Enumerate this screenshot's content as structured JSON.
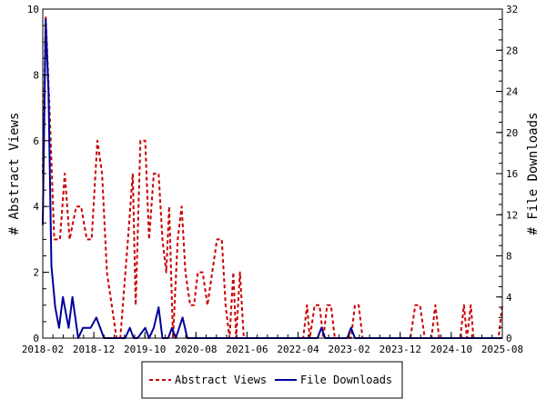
{
  "chart_data": {
    "type": "line",
    "x_axis": {
      "tick_labels": [
        "2018-02",
        "2018-12",
        "2019-10",
        "2020-08",
        "2021-06",
        "2022-04",
        "2023-02",
        "2023-12",
        "2024-10",
        "2025-08"
      ]
    },
    "y_left": {
      "label": "# Abstract Views",
      "range": [
        0,
        10
      ],
      "ticks": [
        0,
        2,
        4,
        6,
        8,
        10
      ]
    },
    "y_right": {
      "label": "# File Downloads",
      "range": [
        0,
        32
      ],
      "ticks": [
        0,
        4,
        8,
        12,
        16,
        20,
        24,
        28,
        32
      ]
    },
    "legend": {
      "position": "bottom"
    },
    "series": [
      {
        "name": "Abstract Views",
        "axis": "left",
        "color": "#cc0000",
        "style": "dashed",
        "points": [
          [
            0.0,
            5
          ],
          [
            0.15,
            9.8
          ],
          [
            0.35,
            7
          ],
          [
            0.6,
            3
          ],
          [
            0.9,
            3
          ],
          [
            1.15,
            5
          ],
          [
            1.4,
            3
          ],
          [
            1.75,
            4
          ],
          [
            2.0,
            4
          ],
          [
            2.3,
            3
          ],
          [
            2.55,
            3
          ],
          [
            2.85,
            6
          ],
          [
            3.1,
            5
          ],
          [
            3.35,
            2
          ],
          [
            3.6,
            1
          ],
          [
            3.85,
            0
          ],
          [
            4.05,
            0
          ],
          [
            4.45,
            3
          ],
          [
            4.7,
            5
          ],
          [
            4.85,
            1
          ],
          [
            5.1,
            6
          ],
          [
            5.35,
            6
          ],
          [
            5.55,
            3
          ],
          [
            5.8,
            5
          ],
          [
            6.05,
            5
          ],
          [
            6.25,
            3
          ],
          [
            6.45,
            2
          ],
          [
            6.6,
            4
          ],
          [
            6.8,
            0
          ],
          [
            7.05,
            3
          ],
          [
            7.25,
            4
          ],
          [
            7.45,
            2
          ],
          [
            7.7,
            1
          ],
          [
            7.9,
            1
          ],
          [
            8.1,
            2
          ],
          [
            8.35,
            2
          ],
          [
            8.6,
            1
          ],
          [
            8.85,
            2
          ],
          [
            9.1,
            3
          ],
          [
            9.35,
            3
          ],
          [
            9.55,
            1
          ],
          [
            9.75,
            0
          ],
          [
            9.95,
            2
          ],
          [
            10.1,
            0
          ],
          [
            10.3,
            2
          ],
          [
            10.5,
            0
          ],
          [
            13.6,
            0
          ],
          [
            13.8,
            1
          ],
          [
            13.95,
            0
          ],
          [
            14.2,
            1
          ],
          [
            14.45,
            1
          ],
          [
            14.65,
            0
          ],
          [
            14.85,
            1
          ],
          [
            15.05,
            1
          ],
          [
            15.25,
            0
          ],
          [
            16.1,
            0
          ],
          [
            16.3,
            1
          ],
          [
            16.5,
            1
          ],
          [
            16.7,
            0
          ],
          [
            19.2,
            0
          ],
          [
            19.45,
            1
          ],
          [
            19.7,
            1
          ],
          [
            19.95,
            0
          ],
          [
            20.3,
            0
          ],
          [
            20.5,
            1
          ],
          [
            20.7,
            0
          ],
          [
            21.8,
            0
          ],
          [
            22.0,
            1
          ],
          [
            22.15,
            0
          ],
          [
            22.35,
            1
          ],
          [
            22.5,
            0
          ],
          [
            23.8,
            0
          ],
          [
            24.0,
            1
          ]
        ]
      },
      {
        "name": "File Downloads",
        "axis": "right",
        "color": "#000099",
        "style": "solid",
        "points": [
          [
            0.0,
            11
          ],
          [
            0.1,
            24
          ],
          [
            0.15,
            31
          ],
          [
            0.3,
            24
          ],
          [
            0.45,
            7
          ],
          [
            0.65,
            3
          ],
          [
            0.85,
            1
          ],
          [
            1.05,
            4
          ],
          [
            1.35,
            1
          ],
          [
            1.55,
            4
          ],
          [
            1.85,
            0
          ],
          [
            2.1,
            1
          ],
          [
            2.5,
            1
          ],
          [
            2.8,
            2
          ],
          [
            3.2,
            0
          ],
          [
            3.6,
            0
          ],
          [
            3.95,
            0
          ],
          [
            4.3,
            0
          ],
          [
            4.55,
            1
          ],
          [
            4.75,
            0
          ],
          [
            4.95,
            0
          ],
          [
            5.35,
            1
          ],
          [
            5.55,
            0
          ],
          [
            5.8,
            1
          ],
          [
            6.05,
            3
          ],
          [
            6.25,
            0
          ],
          [
            6.55,
            0
          ],
          [
            6.75,
            1
          ],
          [
            6.95,
            0
          ],
          [
            7.3,
            2
          ],
          [
            7.55,
            0
          ],
          [
            14.35,
            0
          ],
          [
            14.55,
            1
          ],
          [
            14.75,
            0
          ],
          [
            15.9,
            0
          ],
          [
            16.1,
            1
          ],
          [
            16.3,
            0
          ],
          [
            24.0,
            0
          ]
        ]
      }
    ]
  }
}
